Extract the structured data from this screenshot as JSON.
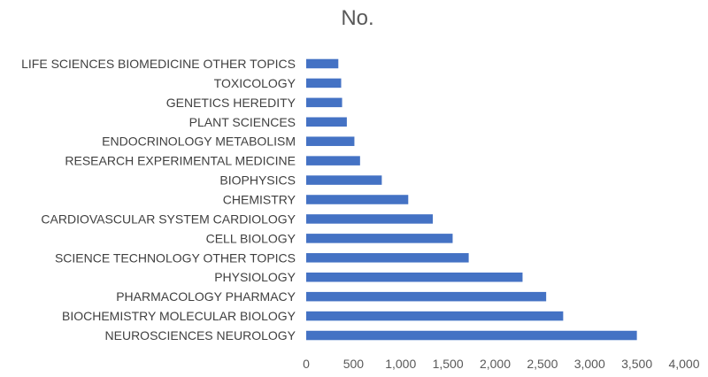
{
  "chart_data": {
    "type": "bar",
    "orientation": "horizontal",
    "title": "No.",
    "xlabel": "",
    "ylabel": "",
    "categories": [
      "NEUROSCIENCES NEUROLOGY",
      "BIOCHEMISTRY MOLECULAR BIOLOGY",
      "PHARMACOLOGY PHARMACY",
      "PHYSIOLOGY",
      "SCIENCE TECHNOLOGY OTHER TOPICS",
      "CELL BIOLOGY",
      "CARDIOVASCULAR SYSTEM CARDIOLOGY",
      "CHEMISTRY",
      "BIOPHYSICS",
      "RESEARCH EXPERIMENTAL MEDICINE",
      "ENDOCRINOLOGY METABOLISM",
      "PLANT SCIENCES",
      "GENETICS HEREDITY",
      "TOXICOLOGY",
      "LIFE SCIENCES BIOMEDICINE OTHER TOPICS"
    ],
    "values": [
      3500,
      2720,
      2540,
      2290,
      1720,
      1550,
      1340,
      1080,
      800,
      570,
      510,
      430,
      380,
      370,
      340
    ],
    "xlim": [
      0,
      4000
    ],
    "xticks": [
      0,
      500,
      1000,
      1500,
      2000,
      2500,
      3000,
      3500,
      4000
    ],
    "xtick_labels": [
      "0",
      "500",
      "1,000",
      "1,500",
      "2,000",
      "2,500",
      "3,000",
      "3,500",
      "4,000"
    ],
    "grid": false,
    "legend": "none",
    "bar_color": "#4472C4"
  }
}
